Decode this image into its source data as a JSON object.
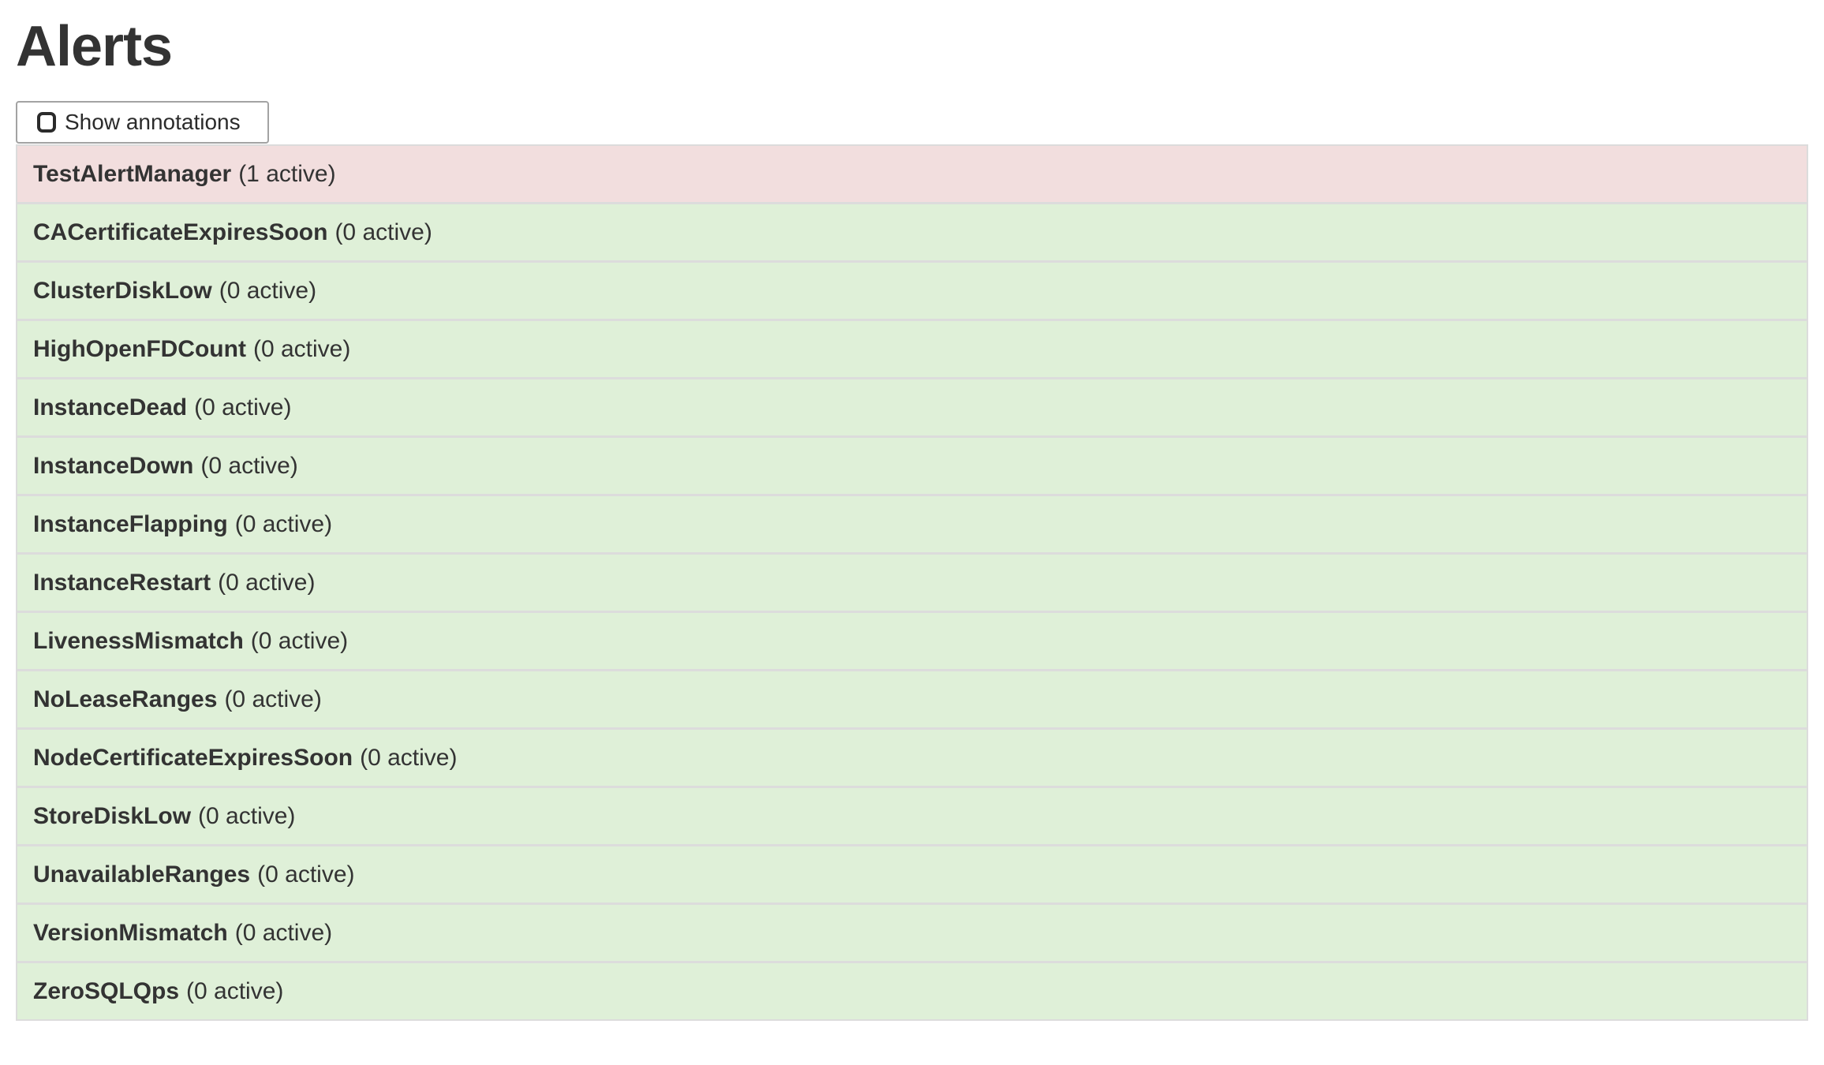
{
  "page": {
    "title": "Alerts"
  },
  "toolbar": {
    "show_annotations_label": "Show annotations",
    "checkbox_checked": false
  },
  "colors": {
    "danger_bg": "#f2dede",
    "success_bg": "#dff0d8",
    "list_border": "#dcdcdc",
    "text": "#333333",
    "button_border": "#a3a3a3"
  },
  "alerts": [
    {
      "name": "TestAlertManager",
      "active_count": 1,
      "count_label": "(1 active)",
      "status": "danger"
    },
    {
      "name": "CACertificateExpiresSoon",
      "active_count": 0,
      "count_label": "(0 active)",
      "status": "success"
    },
    {
      "name": "ClusterDiskLow",
      "active_count": 0,
      "count_label": "(0 active)",
      "status": "success"
    },
    {
      "name": "HighOpenFDCount",
      "active_count": 0,
      "count_label": "(0 active)",
      "status": "success"
    },
    {
      "name": "InstanceDead",
      "active_count": 0,
      "count_label": "(0 active)",
      "status": "success"
    },
    {
      "name": "InstanceDown",
      "active_count": 0,
      "count_label": "(0 active)",
      "status": "success"
    },
    {
      "name": "InstanceFlapping",
      "active_count": 0,
      "count_label": "(0 active)",
      "status": "success"
    },
    {
      "name": "InstanceRestart",
      "active_count": 0,
      "count_label": "(0 active)",
      "status": "success"
    },
    {
      "name": "LivenessMismatch",
      "active_count": 0,
      "count_label": "(0 active)",
      "status": "success"
    },
    {
      "name": "NoLeaseRanges",
      "active_count": 0,
      "count_label": "(0 active)",
      "status": "success"
    },
    {
      "name": "NodeCertificateExpiresSoon",
      "active_count": 0,
      "count_label": "(0 active)",
      "status": "success"
    },
    {
      "name": "StoreDiskLow",
      "active_count": 0,
      "count_label": "(0 active)",
      "status": "success"
    },
    {
      "name": "UnavailableRanges",
      "active_count": 0,
      "count_label": "(0 active)",
      "status": "success"
    },
    {
      "name": "VersionMismatch",
      "active_count": 0,
      "count_label": "(0 active)",
      "status": "success"
    },
    {
      "name": "ZeroSQLQps",
      "active_count": 0,
      "count_label": "(0 active)",
      "status": "success"
    }
  ]
}
